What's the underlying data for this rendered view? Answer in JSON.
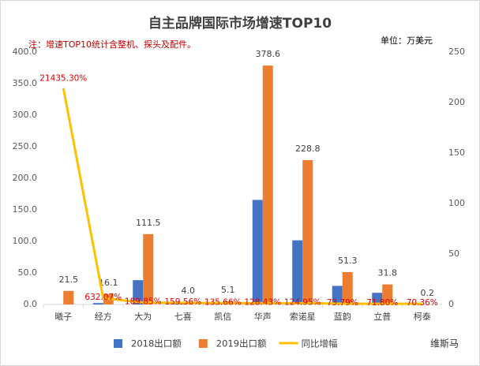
{
  "chart_data": {
    "type": "bar",
    "title": "自主品牌国际市场增速TOP10",
    "note": "注：增速TOP10统计含整机、探头及配件。",
    "unit": "单位：万美元",
    "watermark": "维斯马",
    "categories": [
      "曦子",
      "经方",
      "大为",
      "七喜",
      "凯信",
      "华声",
      "索诺星",
      "蓝韵",
      "立普",
      "柯泰"
    ],
    "series": [
      {
        "name": "2018出口额",
        "color": "#4472c4",
        "values": [
          0.1,
          2.2,
          38.5,
          1.5,
          2.2,
          165.7,
          101.7,
          29.5,
          18.5,
          0.1
        ]
      },
      {
        "name": "2019出口额",
        "color": "#ed7d31",
        "values": [
          21.5,
          16.1,
          111.5,
          4.0,
          5.1,
          378.6,
          228.8,
          51.3,
          31.8,
          0.2
        ],
        "value_labels": [
          "21.5",
          "16.1",
          "111.5",
          "4.0",
          "5.1",
          "378.6",
          "228.8",
          "51.3",
          "31.8",
          "0.2"
        ]
      },
      {
        "name": "同比增幅",
        "color": "#ffc000",
        "axis": "y2",
        "type": "line",
        "values": [
          214.353,
          6.3207,
          1.8985,
          1.5956,
          1.3566,
          1.2843,
          1.2495,
          0.7379,
          0.718,
          0.7036
        ],
        "value_labels": [
          "21435.30%",
          "632.07%",
          "189.85%",
          "159.56%",
          "135.66%",
          "128.43%",
          "124.95%",
          "73.79%",
          "71.80%",
          "70.36%"
        ]
      }
    ],
    "ylim": [
      0,
      400
    ],
    "yticks": [
      {
        "value": 0,
        "label": "0.0"
      },
      {
        "value": 50,
        "label": "50.0"
      },
      {
        "value": 100,
        "label": "100.0"
      },
      {
        "value": 150,
        "label": "150.0"
      },
      {
        "value": 200,
        "label": "200.0"
      },
      {
        "value": 250,
        "label": "250.0"
      },
      {
        "value": 300,
        "label": "300.0"
      },
      {
        "value": 350,
        "label": "350.0"
      },
      {
        "value": 400,
        "label": "400.0"
      }
    ],
    "y2lim": [
      0,
      250
    ],
    "y2ticks": [
      0,
      50,
      100,
      150,
      200,
      250
    ],
    "legend": "bottom"
  }
}
